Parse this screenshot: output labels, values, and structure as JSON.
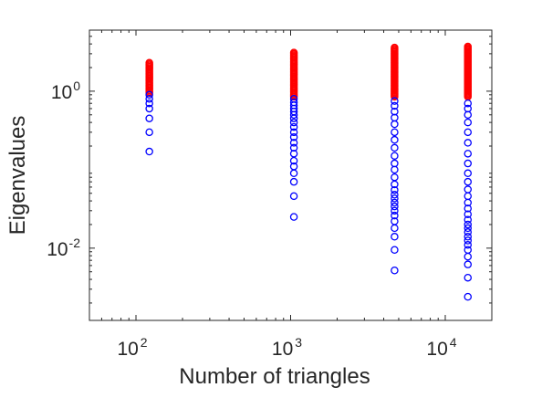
{
  "chart_data": {
    "type": "scatter",
    "title": "",
    "xlabel": "Number of triangles",
    "ylabel": "Eigenvalues",
    "x_scale": "log",
    "y_scale": "log",
    "xlim": [
      50,
      20000
    ],
    "ylim": [
      0.0012,
      6
    ],
    "grid": false,
    "legend": "none",
    "x_ticks": [
      {
        "value": 100,
        "base": "10",
        "exp": "2"
      },
      {
        "value": 1000,
        "base": "10",
        "exp": "3"
      },
      {
        "value": 10000,
        "base": "10",
        "exp": "4"
      }
    ],
    "y_ticks": [
      {
        "value": 1,
        "base": "10",
        "exp": "0"
      },
      {
        "value": 0.01,
        "base": "10",
        "exp": "-2"
      }
    ],
    "marker": "o",
    "series": [
      {
        "color": "#ff0000",
        "points": [
          {
            "x": 122,
            "n": 24,
            "y_min": 0.95,
            "y_max": 2.3
          },
          {
            "x": 1050,
            "n": 36,
            "y_min": 0.85,
            "y_max": 3.1
          },
          {
            "x": 4700,
            "n": 44,
            "y_min": 0.85,
            "y_max": 3.6
          },
          {
            "x": 14000,
            "n": 48,
            "y_min": 0.85,
            "y_max": 3.7
          }
        ]
      },
      {
        "color": "#0000ff",
        "points": [
          {
            "x": 122,
            "y": [
              0.17,
              0.3,
              0.45,
              0.6,
              0.7,
              0.8,
              0.9
            ]
          },
          {
            "x": 1050,
            "y": [
              0.025,
              0.046,
              0.07,
              0.09,
              0.11,
              0.13,
              0.16,
              0.19,
              0.22,
              0.26,
              0.3,
              0.35,
              0.4,
              0.45,
              0.5,
              0.55,
              0.6,
              0.66,
              0.72,
              0.8
            ]
          },
          {
            "x": 4700,
            "y": [
              0.0052,
              0.0095,
              0.014,
              0.018,
              0.022,
              0.026,
              0.03,
              0.034,
              0.038,
              0.043,
              0.048,
              0.055,
              0.065,
              0.08,
              0.1,
              0.12,
              0.15,
              0.19,
              0.24,
              0.3,
              0.38,
              0.46,
              0.55,
              0.65,
              0.75
            ]
          },
          {
            "x": 14000,
            "y": [
              0.0024,
              0.0042,
              0.0062,
              0.0078,
              0.0095,
              0.011,
              0.0125,
              0.014,
              0.016,
              0.018,
              0.02,
              0.023,
              0.027,
              0.032,
              0.038,
              0.046,
              0.056,
              0.07,
              0.09,
              0.12,
              0.16,
              0.22,
              0.3,
              0.4,
              0.5,
              0.6,
              0.7
            ]
          }
        ]
      }
    ]
  }
}
